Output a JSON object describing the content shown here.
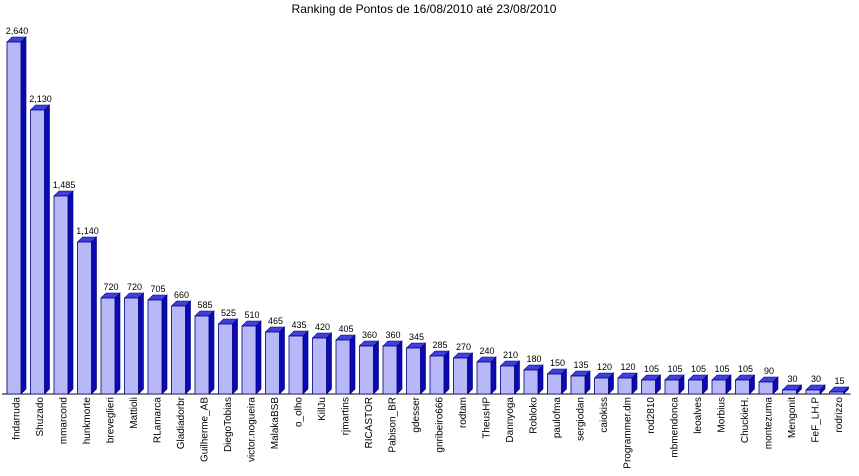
{
  "chart_data": {
    "type": "bar",
    "title": "Ranking de Pontos de 16/08/2010 até 23/08/2010",
    "xlabel": "",
    "ylabel": "",
    "grid": false,
    "legend": "none",
    "colors": {
      "bar_front": "#b8b8f8",
      "bar_side": "#0a0ab0",
      "bar_top": "#4040e0",
      "bar_edge": "#000080",
      "axis": "#000000"
    },
    "categories": [
      "fndarruda",
      "Shuzado",
      "mmarcond",
      "hunkmorte",
      "breveglieri",
      "Mattioli",
      "RLamarca",
      "Gladiadorbr",
      "Guilherme_AB",
      "DiegoTobias",
      "victor.nogueira",
      "MalakaBSB",
      "o_olho",
      "KillJu",
      "rjmartins",
      "RICASTOR",
      "Pabison_BR",
      "gdesser",
      "gnribeiro666",
      "rodtam",
      "TheusHP",
      "Dannyoga",
      "Robloko",
      "paulofma",
      "sergiodan",
      "caiokiss",
      "Programmer.dm",
      "rod2810",
      "mbmendonca",
      "leoalves",
      "Morbius",
      "ChuckieH.",
      "montezuma",
      "Mengonit",
      "FeF_LH.P",
      "rodrizzo"
    ],
    "values": [
      2640,
      2130,
      1485,
      1140,
      720,
      720,
      705,
      660,
      585,
      525,
      510,
      465,
      435,
      420,
      405,
      360,
      360,
      345,
      285,
      270,
      240,
      210,
      180,
      150,
      135,
      120,
      120,
      105,
      105,
      105,
      105,
      105,
      90,
      30,
      30,
      15
    ],
    "value_labels": [
      "2,640",
      "2,130",
      "1,485",
      "1,140",
      "720",
      "720",
      "705",
      "660",
      "585",
      "525",
      "510",
      "465",
      "435",
      "420",
      "405",
      "360",
      "360",
      "345",
      "285",
      "270",
      "240",
      "210",
      "180",
      "150",
      "135",
      "120",
      "120",
      "105",
      "105",
      "105",
      "105",
      "105",
      "90",
      "30",
      "30",
      "15"
    ]
  }
}
